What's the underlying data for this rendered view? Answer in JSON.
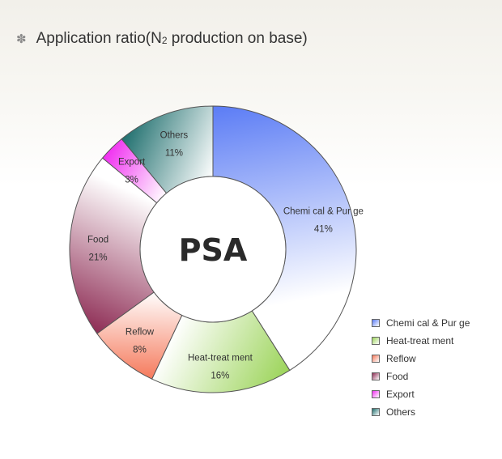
{
  "header": {
    "bullet_icon": "flower-bullet-icon",
    "title_prefix": "Application ratio(N",
    "title_subscript": "2",
    "title_suffix": " production on base)"
  },
  "chart_data": {
    "type": "pie",
    "donut": true,
    "center_label": "PSA",
    "legend_placement": "bottom-right",
    "slices": [
      {
        "label": "Chemi cal & Pur ge",
        "value": 41,
        "value_label": "41%",
        "color": "#5b7cf5"
      },
      {
        "label": "Heat-treat ment",
        "value": 16,
        "value_label": "16%",
        "color": "#9cd45a"
      },
      {
        "label": "Reflow",
        "value": 8,
        "value_label": "8%",
        "color": "#f57a5c"
      },
      {
        "label": "Food",
        "value": 21,
        "value_label": "21%",
        "color": "#8e2d55"
      },
      {
        "label": "Export",
        "value": 3,
        "value_label": "3%",
        "color": "#f02ef0"
      },
      {
        "label": "Others",
        "value": 11,
        "value_label": "11%",
        "color": "#1f6f6e"
      }
    ]
  }
}
